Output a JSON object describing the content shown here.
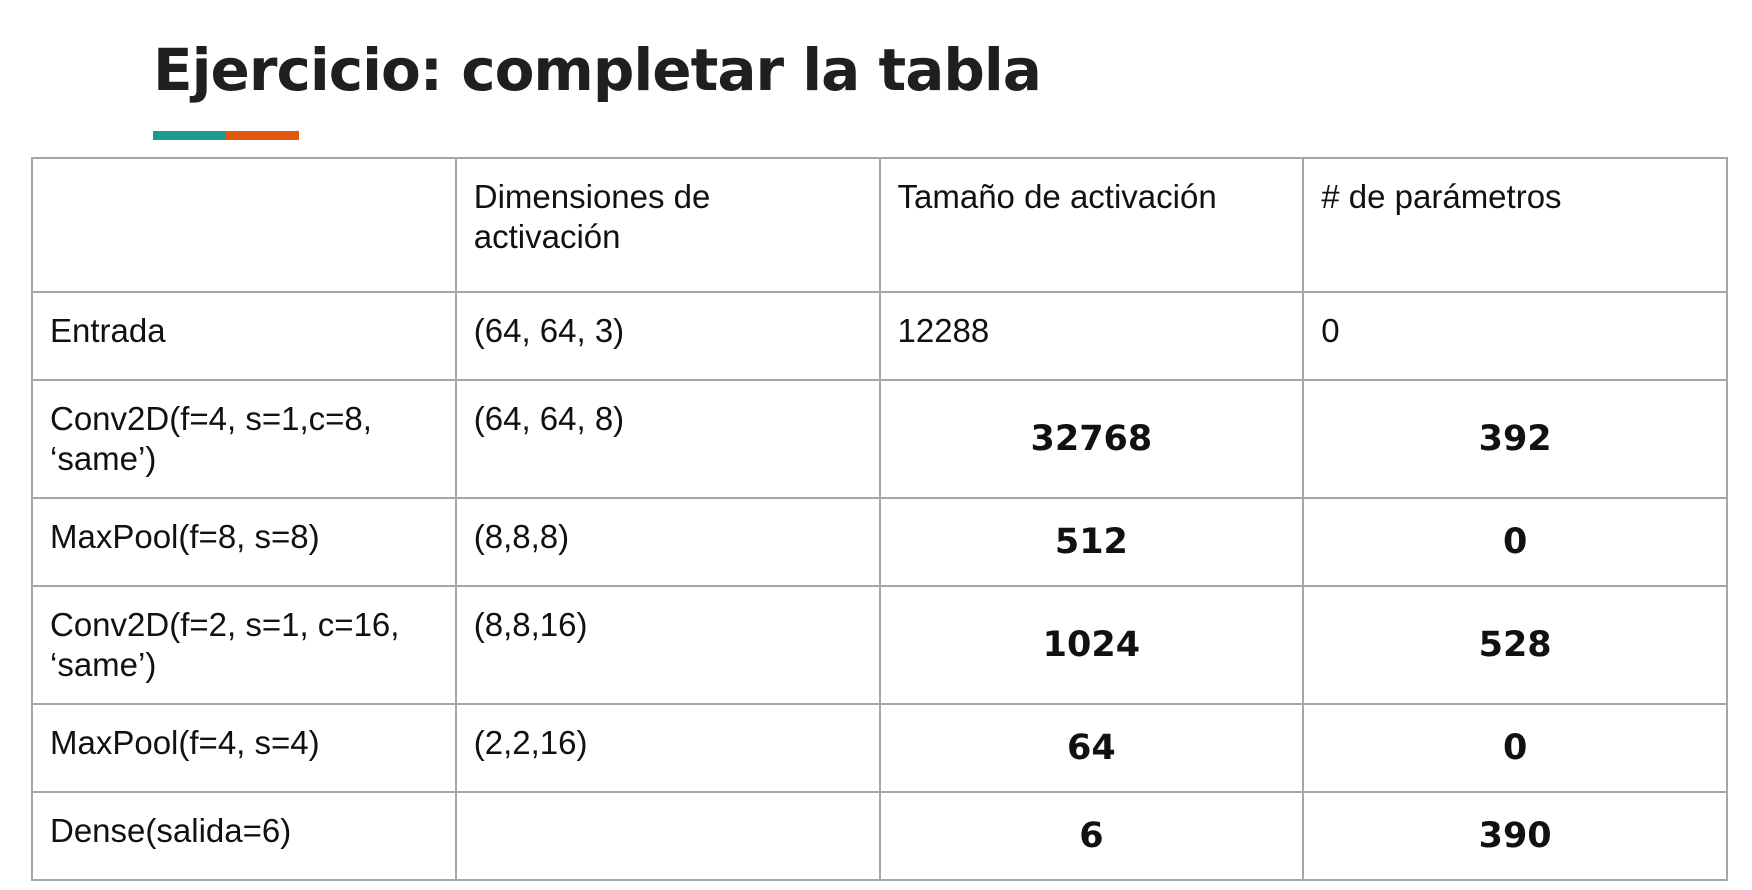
{
  "slide": {
    "title": "Ejercicio: completar la tabla",
    "accent_colors": [
      "#1a9b8e",
      "#e4570f"
    ]
  },
  "table": {
    "headers": [
      "",
      "Dimensiones de activación",
      "Tamaño de activación",
      "# de parámetros"
    ],
    "rows": [
      {
        "layer": "Entrada",
        "dims": "(64, 64, 3)",
        "size": "12288",
        "params": "0"
      },
      {
        "layer": "Conv2D(f=4, s=1,c=8, ‘same’)",
        "dims": "(64, 64, 8)",
        "size": "32768",
        "params": "392"
      },
      {
        "layer": "MaxPool(f=8, s=8)",
        "dims": "(8,8,8)",
        "size": "512",
        "params": "0"
      },
      {
        "layer": "Conv2D(f=2, s=1, c=16, ‘same’)",
        "dims": "(8,8,16)",
        "size": "1024",
        "params": "528"
      },
      {
        "layer": "MaxPool(f=4, s=4)",
        "dims": "(2,2,16)",
        "size": "64",
        "params": "0"
      },
      {
        "layer": "Dense(salida=6)",
        "dims": "",
        "size": "6",
        "params": "390"
      }
    ]
  }
}
